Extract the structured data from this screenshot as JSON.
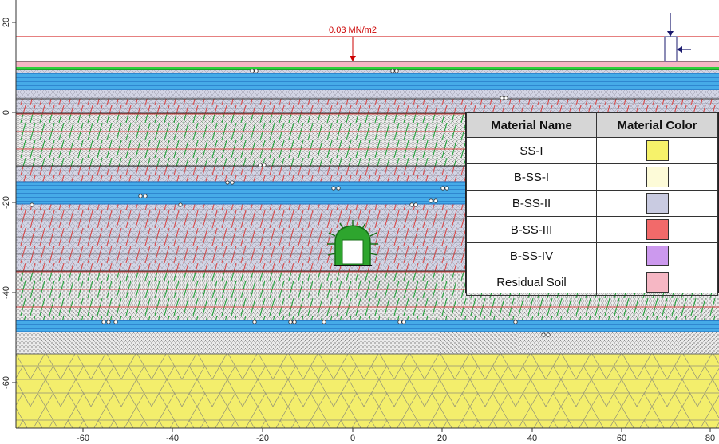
{
  "view": {
    "load_label": "0.03 MN/m2",
    "x_ticks": [
      "-60",
      "-40",
      "-20",
      "0",
      "20",
      "40",
      "60",
      "80"
    ],
    "y_ticks": [
      "20",
      "0",
      "-20",
      "-40",
      "-60"
    ]
  },
  "layers": [
    {
      "material": "Residual Soil",
      "y_top": 10,
      "y_bottom": 9
    },
    {
      "material": "B-SS-II",
      "y_top": 9,
      "y_bottom": 2
    },
    {
      "material": "B-SS-III",
      "y_top": 2,
      "y_bottom": 0
    },
    {
      "material": "B-SS-II",
      "y_top": 0,
      "y_bottom": -12
    },
    {
      "material": "B-SS-III",
      "y_top": -12,
      "y_bottom": -16
    },
    {
      "material": "B-SS-II",
      "y_top": -16,
      "y_bottom": -22
    },
    {
      "material": "B-SS-III",
      "y_top": -22,
      "y_bottom": -36
    },
    {
      "material": "B-SS-II",
      "y_top": -36,
      "y_bottom": -47
    },
    {
      "material": "B-SS-I",
      "y_top": -47,
      "y_bottom": -53
    },
    {
      "material": "SS-I",
      "y_top": -53,
      "y_bottom": -70
    }
  ],
  "legend": {
    "header_name": "Material Name",
    "header_color": "Material Color",
    "rows": [
      {
        "name": "SS-I",
        "color": "#f6f26a"
      },
      {
        "name": "B-SS-I",
        "color": "#fdfbd8"
      },
      {
        "name": "B-SS-II",
        "color": "#c9cbe1"
      },
      {
        "name": "B-SS-III",
        "color": "#f26a6a"
      },
      {
        "name": "B-SS-IV",
        "color": "#cc99ee"
      },
      {
        "name": "Residual Soil",
        "color": "#f6b7c4"
      }
    ]
  },
  "colors": {
    "mesh_line": "#8e8e8e",
    "green_contour": "#22a23a",
    "red_contour": "#d94848",
    "blue_band": "#44a9e6",
    "load_line": "#cc0000",
    "tunnel_lining": "#2ea52e"
  }
}
